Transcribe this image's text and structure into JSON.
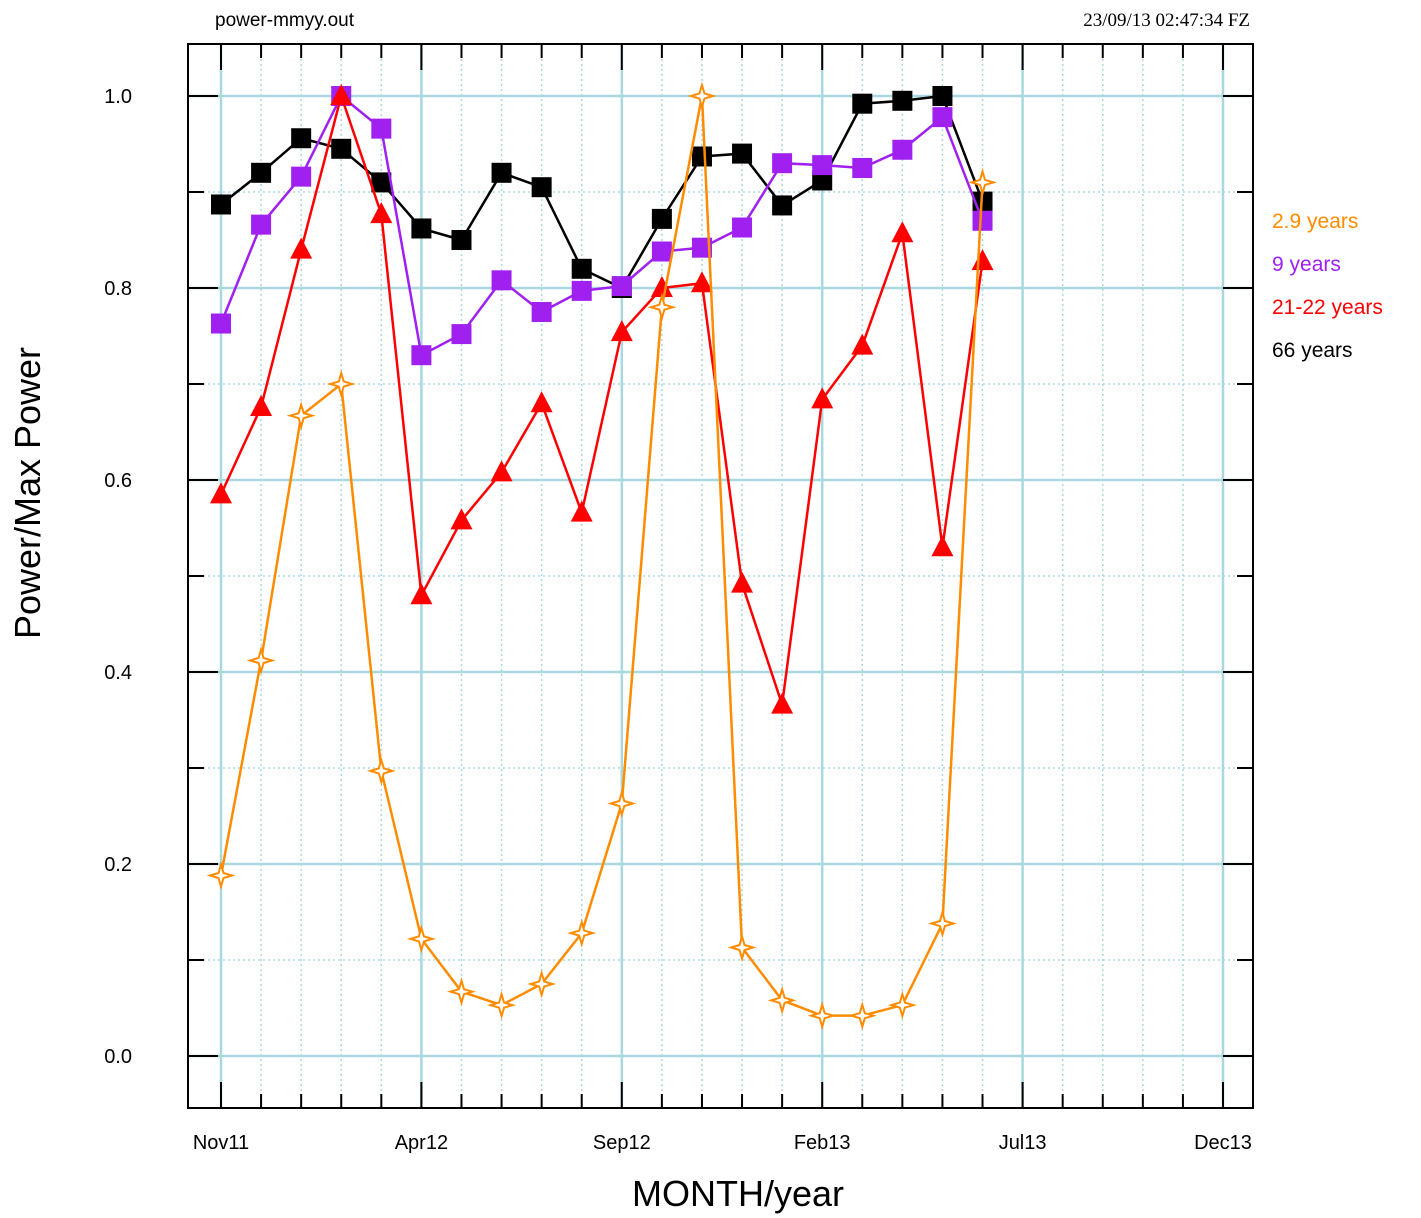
{
  "header": {
    "left": "power-mmyy.out",
    "right": "23/09/13  02:47:34 FZ"
  },
  "chart_data": {
    "type": "line",
    "xlabel": "MONTH/year",
    "ylabel": "Power/Max Power",
    "xlim": [
      0,
      25
    ],
    "ylim": [
      -0.045,
      1.065
    ],
    "x_ticks": [
      {
        "x": 0,
        "label": "Nov11"
      },
      {
        "x": 5,
        "label": "Apr12"
      },
      {
        "x": 10,
        "label": "Sep12"
      },
      {
        "x": 15,
        "label": "Feb13"
      },
      {
        "x": 20,
        "label": "Jul13"
      },
      {
        "x": 25,
        "label": "Dec13"
      }
    ],
    "y_ticks": [
      {
        "y": 0.0,
        "label": "0.0"
      },
      {
        "y": 0.2,
        "label": "0.2"
      },
      {
        "y": 0.4,
        "label": "0.4"
      },
      {
        "y": 0.6,
        "label": "0.6"
      },
      {
        "y": 0.8,
        "label": "0.8"
      },
      {
        "y": 1.0,
        "label": "1.0"
      }
    ],
    "grid": true,
    "legend_position": "right",
    "series": [
      {
        "name": "66 years",
        "color": "#000000",
        "marker": "square",
        "x": [
          0,
          1,
          2,
          3,
          4,
          5,
          6,
          7,
          8,
          9,
          10,
          11,
          12,
          13,
          14,
          15,
          16,
          17,
          18,
          19
        ],
        "values": [
          0.887,
          0.92,
          0.956,
          0.945,
          0.91,
          0.862,
          0.85,
          0.92,
          0.905,
          0.82,
          0.8,
          0.872,
          0.937,
          0.94,
          0.886,
          0.912,
          0.992,
          0.995,
          1.0,
          0.89
        ]
      },
      {
        "name": "9 years",
        "color": "#a020f0",
        "marker": "square",
        "x": [
          0,
          1,
          2,
          3,
          4,
          5,
          6,
          7,
          8,
          9,
          10,
          11,
          12,
          13,
          14,
          15,
          16,
          17,
          18,
          19
        ],
        "values": [
          0.763,
          0.866,
          0.916,
          1.0,
          0.966,
          0.73,
          0.752,
          0.808,
          0.775,
          0.797,
          0.802,
          0.838,
          0.842,
          0.863,
          0.93,
          0.928,
          0.925,
          0.944,
          0.978,
          0.87
        ]
      },
      {
        "name": "21-22 years",
        "color": "#ff0000",
        "marker": "triangle",
        "x": [
          0,
          1,
          2,
          3,
          4,
          5,
          6,
          7,
          8,
          9,
          10,
          11,
          12,
          13,
          14,
          15,
          16,
          17,
          18,
          19
        ],
        "values": [
          0.585,
          0.676,
          0.84,
          1.0,
          0.877,
          0.48,
          0.558,
          0.608,
          0.68,
          0.566,
          0.754,
          0.8,
          0.805,
          0.492,
          0.366,
          0.684,
          0.74,
          0.857,
          0.53,
          0.828
        ]
      },
      {
        "name": "2.9 years",
        "color": "#ff8c00",
        "marker": "star",
        "x": [
          0,
          1,
          2,
          3,
          4,
          5,
          6,
          7,
          8,
          9,
          10,
          11,
          12,
          13,
          14,
          15,
          16,
          17,
          18,
          19
        ],
        "values": [
          0.188,
          0.412,
          0.667,
          0.7,
          0.297,
          0.122,
          0.067,
          0.053,
          0.075,
          0.128,
          0.263,
          0.78,
          1.0,
          0.113,
          0.058,
          0.042,
          0.042,
          0.053,
          0.138,
          0.91
        ]
      }
    ],
    "legend_order": [
      "2.9 years",
      "9 years",
      "21-22 years",
      "66 years"
    ]
  }
}
